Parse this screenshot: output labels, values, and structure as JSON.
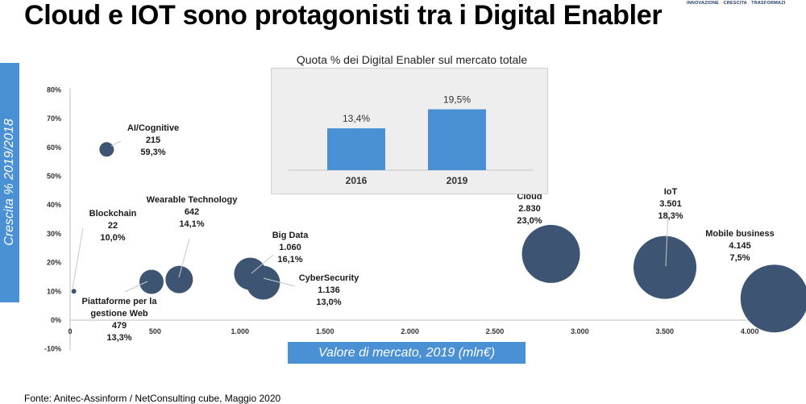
{
  "title": "Cloud e IOT sono protagonisti tra i Digital Enabler",
  "brand": {
    "word1": "INNOVAZIONE",
    "word2": "CRESCITA",
    "word3": "TRASFORMAZI"
  },
  "source": "Fonte: Anitec-Assinform / NetConsulting cube, Maggio  2020",
  "chart_data": [
    {
      "type": "bubble",
      "xlabel": "Valore di mercato, 2019 (mln€)",
      "ylabel": "Crescita % 2019/2018",
      "xlim": [
        0,
        4150
      ],
      "ylim": [
        -10,
        80
      ],
      "x_ticks": [
        "0",
        "500",
        "1.000",
        "1.500",
        "2.000",
        "2.500",
        "3.000",
        "3.500",
        "4.000"
      ],
      "y_ticks": [
        "-10%",
        "0%",
        "10%",
        "20%",
        "30%",
        "40%",
        "50%",
        "60%",
        "70%",
        "80%"
      ],
      "points": [
        {
          "name": "AI/Cognitive",
          "value_label": "215",
          "growth_label": "59,3%",
          "x": 215,
          "y": 59.3
        },
        {
          "name": "Blockchain",
          "value_label": "22",
          "growth_label": "10,0%",
          "x": 22,
          "y": 10.0
        },
        {
          "name": "Wearable Technology",
          "value_label": "642",
          "growth_label": "14,1%",
          "x": 642,
          "y": 14.1
        },
        {
          "name": "Piattaforme per la gestione Web",
          "name_lines": [
            "Piattaforme per la",
            "gestione Web"
          ],
          "value_label": "479",
          "growth_label": "13,3%",
          "x": 479,
          "y": 13.3
        },
        {
          "name": "Big Data",
          "value_label": "1.060",
          "growth_label": "16,1%",
          "x": 1060,
          "y": 16.1
        },
        {
          "name": "CyberSecurity",
          "value_label": "1.136",
          "growth_label": "13,0%",
          "x": 1136,
          "y": 13.0
        },
        {
          "name": "Cloud",
          "value_label": "2.830",
          "growth_label": "23,0%",
          "x": 2830,
          "y": 23.0
        },
        {
          "name": "IoT",
          "value_label": "3.501",
          "growth_label": "18,3%",
          "x": 3501,
          "y": 18.3
        },
        {
          "name": "Mobile business",
          "value_label": "4.145",
          "growth_label": "7,5%",
          "x": 4145,
          "y": 7.5
        }
      ],
      "bubble_color": "#3d5573",
      "grid": false
    },
    {
      "type": "bar",
      "title": "Quota % dei Digital Enabler sul mercato totale",
      "categories": [
        "2016",
        "2019"
      ],
      "values": [
        13.4,
        19.5
      ],
      "data_labels": [
        "13,4%",
        "19,5%"
      ],
      "ylim": [
        0,
        20
      ],
      "bar_color": "#4a90d4"
    }
  ]
}
